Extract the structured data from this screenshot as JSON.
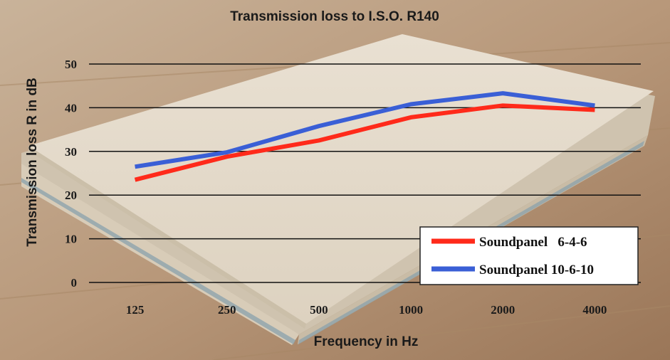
{
  "chart_data": {
    "type": "line",
    "title": "Transmission loss to I.S.O. R140",
    "xlabel": "Frequency in Hz",
    "ylabel": "Transmission loss R in dB",
    "categories": [
      "125",
      "250",
      "500",
      "1000",
      "2000",
      "4000"
    ],
    "ylim": [
      0,
      50
    ],
    "yticks": [
      "0",
      "10",
      "20",
      "30",
      "40",
      "50"
    ],
    "grid": true,
    "legend_position": "bottom-right",
    "series": [
      {
        "name": "Soundpanel   6-4-6",
        "color": "#ff2a1a",
        "values": [
          23.5,
          28.8,
          32.5,
          37.8,
          40.5,
          39.5
        ]
      },
      {
        "name": "Soundpanel 10-6-10",
        "color": "#3a5fd6",
        "values": [
          26.5,
          29.8,
          35.8,
          40.8,
          43.3,
          40.5
        ]
      }
    ]
  }
}
